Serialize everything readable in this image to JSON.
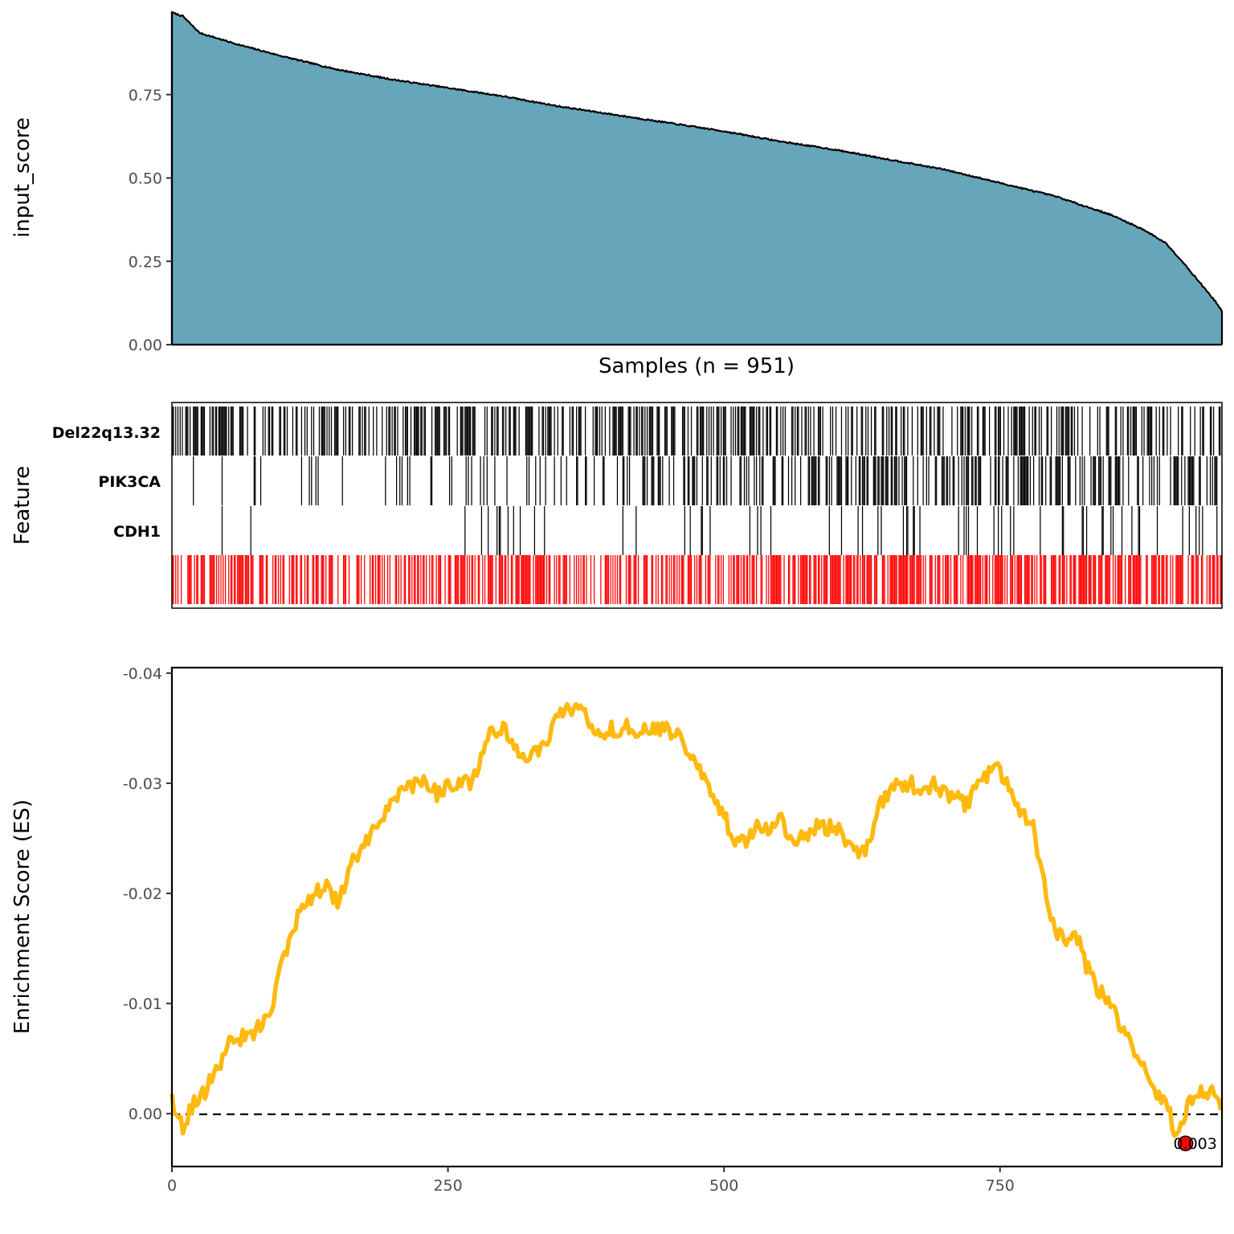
{
  "chart_data": [
    {
      "type": "area",
      "panel": "input-score",
      "ylabel": "input_score",
      "xlabel": "Samples (n = 951)",
      "n_samples": 951,
      "ylim": [
        0,
        1.0
      ],
      "yticks": [
        0.0,
        0.25,
        0.5,
        0.75
      ],
      "ytick_labels": [
        "0.00",
        "0.25",
        "0.50",
        "0.75"
      ],
      "fill_color": "#67A5BA",
      "outline_color": "#000000",
      "profile": {
        "rank": [
          0,
          10,
          25,
          40,
          60,
          100,
          150,
          200,
          250,
          300,
          350,
          400,
          450,
          500,
          550,
          600,
          650,
          700,
          750,
          800,
          850,
          880,
          900,
          915,
          925,
          935,
          945,
          951
        ],
        "score": [
          0.996,
          0.985,
          0.935,
          0.92,
          0.9,
          0.865,
          0.825,
          0.795,
          0.77,
          0.745,
          0.715,
          0.69,
          0.665,
          0.64,
          0.61,
          0.585,
          0.555,
          0.525,
          0.485,
          0.445,
          0.39,
          0.345,
          0.305,
          0.25,
          0.21,
          0.17,
          0.13,
          0.1
        ]
      }
    },
    {
      "type": "heatmap",
      "panel": "features",
      "ylabel": "Feature",
      "rows": [
        "Del22q13.32",
        "PIK3CA",
        "CDH1",
        ""
      ],
      "row_colors": [
        "#000000",
        "#000000",
        "#000000",
        "#FF0000"
      ],
      "n_samples": 951,
      "row_densities": [
        {
          "rank": [
            0,
            150,
            300,
            450,
            600,
            750,
            900,
            951
          ],
          "prob": [
            0.55,
            0.4,
            0.5,
            0.45,
            0.42,
            0.45,
            0.35,
            0.3
          ]
        },
        {
          "rank": [
            0,
            150,
            300,
            450,
            600,
            750,
            900,
            951
          ],
          "prob": [
            0.05,
            0.07,
            0.15,
            0.3,
            0.35,
            0.4,
            0.45,
            0.45
          ]
        },
        {
          "rank": [
            0,
            150,
            300,
            450,
            600,
            750,
            900,
            951
          ],
          "prob": [
            0.01,
            0.02,
            0.05,
            0.08,
            0.12,
            0.12,
            0.12,
            0.12
          ]
        },
        {
          "rank": [
            0,
            150,
            300,
            450,
            600,
            750,
            900,
            951
          ],
          "prob": [
            0.55,
            0.45,
            0.55,
            0.65,
            0.62,
            0.65,
            0.62,
            0.6
          ]
        }
      ]
    },
    {
      "type": "line",
      "panel": "enrichment",
      "ylabel": "Enrichment Score (ES)",
      "xlim": [
        0,
        951
      ],
      "xticks": [
        0,
        250,
        500,
        750
      ],
      "xtick_labels": [
        "0",
        "250",
        "500",
        "750"
      ],
      "ylim": [
        0.0048,
        -0.0405
      ],
      "y_reversed": true,
      "yticks": [
        -0.04,
        -0.03,
        -0.02,
        -0.01,
        0.0
      ],
      "ytick_labels": [
        "-0.04",
        "-0.03",
        "-0.02",
        "-0.01",
        "0.00"
      ],
      "line_color": "#FFB90F",
      "zero_line": {
        "y": 0.0,
        "style": "dashed",
        "color": "#000000"
      },
      "points": {
        "x": [
          0,
          10,
          20,
          30,
          40,
          50,
          60,
          70,
          80,
          90,
          100,
          110,
          120,
          130,
          140,
          150,
          160,
          170,
          180,
          190,
          200,
          210,
          220,
          230,
          240,
          250,
          260,
          270,
          280,
          290,
          300,
          310,
          320,
          330,
          340,
          350,
          360,
          370,
          380,
          390,
          400,
          410,
          420,
          430,
          440,
          450,
          460,
          470,
          480,
          490,
          500,
          510,
          520,
          530,
          540,
          550,
          560,
          570,
          580,
          590,
          600,
          610,
          620,
          630,
          640,
          650,
          660,
          670,
          680,
          690,
          700,
          710,
          720,
          730,
          740,
          750,
          760,
          770,
          780,
          790,
          800,
          810,
          820,
          830,
          840,
          850,
          860,
          870,
          880,
          890,
          900,
          910,
          920,
          930,
          940,
          951
        ],
        "y": [
          -0.001,
          0.001,
          -0.001,
          -0.002,
          -0.004,
          -0.006,
          -0.007,
          -0.007,
          -0.008,
          -0.009,
          -0.014,
          -0.017,
          -0.019,
          -0.02,
          -0.021,
          -0.019,
          -0.022,
          -0.024,
          -0.025,
          -0.027,
          -0.029,
          -0.029,
          -0.03,
          -0.03,
          -0.029,
          -0.03,
          -0.03,
          -0.03,
          -0.032,
          -0.035,
          -0.035,
          -0.033,
          -0.032,
          -0.033,
          -0.034,
          -0.036,
          -0.037,
          -0.037,
          -0.035,
          -0.034,
          -0.035,
          -0.035,
          -0.035,
          -0.035,
          -0.035,
          -0.035,
          -0.034,
          -0.032,
          -0.031,
          -0.029,
          -0.027,
          -0.025,
          -0.025,
          -0.026,
          -0.026,
          -0.027,
          -0.025,
          -0.025,
          -0.026,
          -0.026,
          -0.026,
          -0.025,
          -0.024,
          -0.024,
          -0.028,
          -0.029,
          -0.03,
          -0.03,
          -0.029,
          -0.03,
          -0.029,
          -0.029,
          -0.028,
          -0.03,
          -0.031,
          -0.031,
          -0.029,
          -0.027,
          -0.026,
          -0.021,
          -0.016,
          -0.016,
          -0.016,
          -0.013,
          -0.011,
          -0.01,
          -0.008,
          -0.006,
          -0.004,
          -0.002,
          -0.001,
          0.002,
          -0.001,
          -0.002,
          -0.002,
          -0.001
        ]
      },
      "min_point": {
        "x": 918,
        "y": 0.0027,
        "label": "0.003",
        "color": "#FF0000"
      }
    }
  ]
}
